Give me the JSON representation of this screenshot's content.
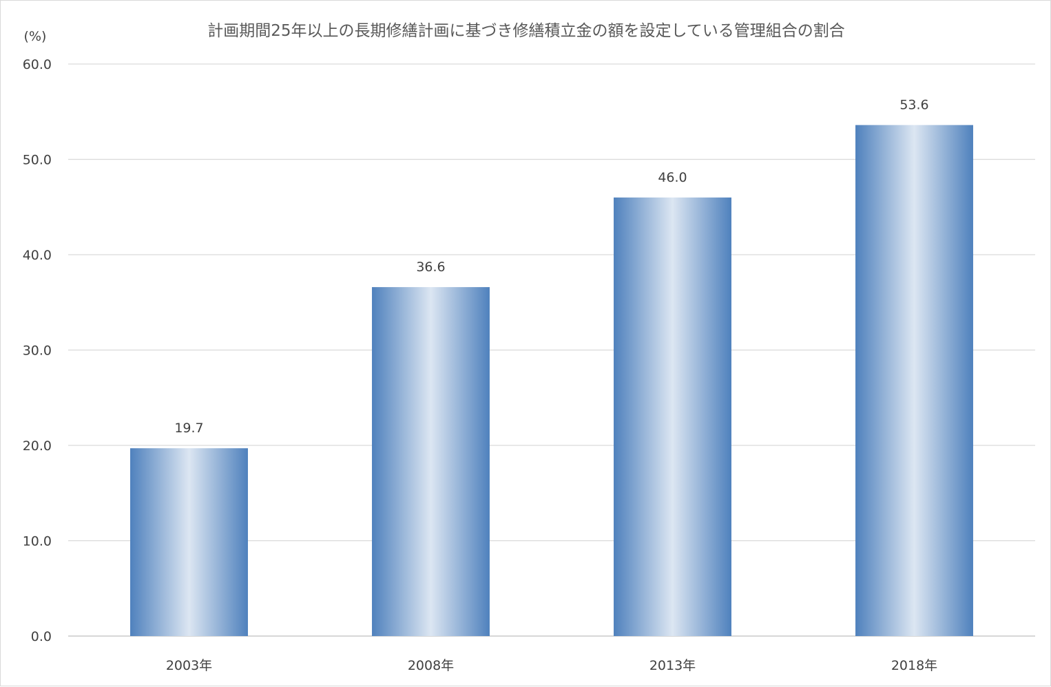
{
  "chart_data": {
    "type": "bar",
    "title": "計画期間25年以上の長期修繕計画に基づき修繕積立金の額を設定している管理組合の割合",
    "ylabel": "(%)",
    "xlabel": "",
    "categories": [
      "2003年",
      "2008年",
      "2013年",
      "2018年"
    ],
    "values": [
      19.7,
      36.6,
      46.0,
      53.6
    ],
    "value_labels": [
      "19.7",
      "36.6",
      "46.0",
      "53.6"
    ],
    "ylim": [
      0,
      60
    ],
    "yticks": [
      0,
      10,
      20,
      30,
      40,
      50,
      60
    ],
    "ytick_labels": [
      "0.0",
      "10.0",
      "20.0",
      "30.0",
      "40.0",
      "50.0",
      "60.0"
    ],
    "grid": true,
    "legend": "none",
    "colors": {
      "bar_edge": "#4f81bd",
      "bar_center": "#dce6f2",
      "gridline": "#d9d9d9",
      "axis_line": "#bfbfbf",
      "text": "#404040"
    }
  }
}
